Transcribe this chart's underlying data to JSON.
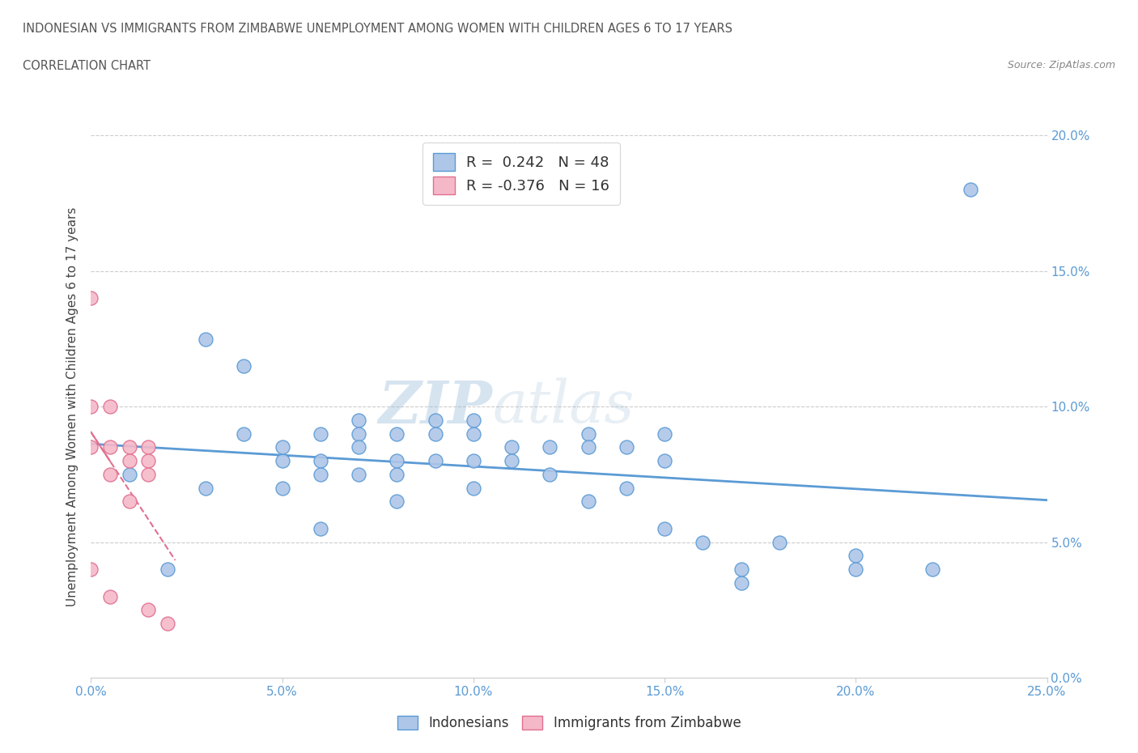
{
  "title_line1": "INDONESIAN VS IMMIGRANTS FROM ZIMBABWE UNEMPLOYMENT AMONG WOMEN WITH CHILDREN AGES 6 TO 17 YEARS",
  "title_line2": "CORRELATION CHART",
  "source": "Source: ZipAtlas.com",
  "ylabel_label": "Unemployment Among Women with Children Ages 6 to 17 years",
  "xlim": [
    0.0,
    0.25
  ],
  "ylim": [
    0.0,
    0.2
  ],
  "ytick_vals": [
    0.0,
    0.05,
    0.1,
    0.15,
    0.2
  ],
  "ytick_labels": [
    "0.0%",
    "5.0%",
    "10.0%",
    "15.0%",
    "20.0%"
  ],
  "xtick_vals": [
    0.0,
    0.05,
    0.1,
    0.15,
    0.2,
    0.25
  ],
  "xtick_labels": [
    "0.0%",
    "5.0%",
    "10.0%",
    "15.0%",
    "20.0%",
    "25.0%"
  ],
  "R_indonesian": 0.242,
  "N_indonesian": 48,
  "R_zimbabwe": -0.376,
  "N_zimbabwe": 16,
  "color_indonesian": "#aec6e8",
  "color_zimbabwe": "#f5b8c8",
  "line_color_indonesian": "#5b9bd5",
  "line_color_zimbabwe": "#e07090",
  "watermark_zip": "ZIP",
  "watermark_atlas": "atlas",
  "background_color": "#ffffff",
  "indonesian_x": [
    0.01,
    0.02,
    0.03,
    0.03,
    0.04,
    0.04,
    0.05,
    0.05,
    0.05,
    0.06,
    0.06,
    0.06,
    0.06,
    0.07,
    0.07,
    0.07,
    0.07,
    0.08,
    0.08,
    0.08,
    0.08,
    0.09,
    0.09,
    0.09,
    0.1,
    0.1,
    0.1,
    0.1,
    0.11,
    0.11,
    0.12,
    0.12,
    0.13,
    0.13,
    0.13,
    0.14,
    0.14,
    0.15,
    0.15,
    0.15,
    0.16,
    0.17,
    0.17,
    0.18,
    0.2,
    0.2,
    0.22,
    0.23
  ],
  "indonesian_y": [
    0.075,
    0.04,
    0.125,
    0.07,
    0.115,
    0.09,
    0.08,
    0.085,
    0.07,
    0.09,
    0.08,
    0.075,
    0.055,
    0.095,
    0.09,
    0.085,
    0.075,
    0.09,
    0.08,
    0.075,
    0.065,
    0.095,
    0.09,
    0.08,
    0.095,
    0.09,
    0.08,
    0.07,
    0.085,
    0.08,
    0.085,
    0.075,
    0.09,
    0.085,
    0.065,
    0.085,
    0.07,
    0.09,
    0.08,
    0.055,
    0.05,
    0.04,
    0.035,
    0.05,
    0.045,
    0.04,
    0.04,
    0.18
  ],
  "zimbabwe_x": [
    0.0,
    0.0,
    0.0,
    0.0,
    0.005,
    0.005,
    0.005,
    0.005,
    0.01,
    0.01,
    0.01,
    0.015,
    0.015,
    0.015,
    0.015,
    0.02
  ],
  "zimbabwe_y": [
    0.14,
    0.1,
    0.085,
    0.04,
    0.1,
    0.085,
    0.075,
    0.03,
    0.085,
    0.08,
    0.065,
    0.085,
    0.08,
    0.075,
    0.025,
    0.02
  ]
}
